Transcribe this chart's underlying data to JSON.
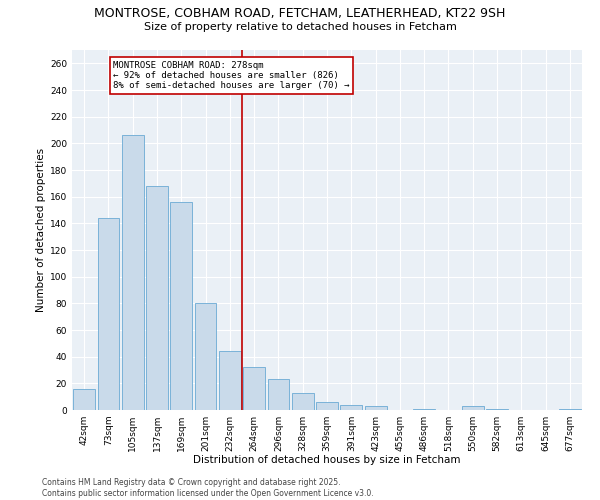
{
  "title": "MONTROSE, COBHAM ROAD, FETCHAM, LEATHERHEAD, KT22 9SH",
  "subtitle": "Size of property relative to detached houses in Fetcham",
  "xlabel": "Distribution of detached houses by size in Fetcham",
  "ylabel": "Number of detached properties",
  "categories": [
    "42sqm",
    "73sqm",
    "105sqm",
    "137sqm",
    "169sqm",
    "201sqm",
    "232sqm",
    "264sqm",
    "296sqm",
    "328sqm",
    "359sqm",
    "391sqm",
    "423sqm",
    "455sqm",
    "486sqm",
    "518sqm",
    "550sqm",
    "582sqm",
    "613sqm",
    "645sqm",
    "677sqm"
  ],
  "values": [
    16,
    144,
    206,
    168,
    156,
    80,
    44,
    32,
    23,
    13,
    6,
    4,
    3,
    0,
    1,
    0,
    3,
    1,
    0,
    0,
    1
  ],
  "bar_color": "#c9daea",
  "bar_edge_color": "#6aaad4",
  "property_bin_index": 7,
  "annotation_title": "MONTROSE COBHAM ROAD: 278sqm",
  "annotation_line1": "← 92% of detached houses are smaller (826)",
  "annotation_line2": "8% of semi-detached houses are larger (70) →",
  "vline_color": "#c00000",
  "annotation_box_color": "#c00000",
  "ylim": [
    0,
    270
  ],
  "yticks": [
    0,
    20,
    40,
    60,
    80,
    100,
    120,
    140,
    160,
    180,
    200,
    220,
    240,
    260
  ],
  "background_color": "#eaf0f6",
  "footer_line1": "Contains HM Land Registry data © Crown copyright and database right 2025.",
  "footer_line2": "Contains public sector information licensed under the Open Government Licence v3.0.",
  "title_fontsize": 9,
  "subtitle_fontsize": 8,
  "axis_label_fontsize": 7.5,
  "tick_fontsize": 6.5,
  "annotation_fontsize": 6.5,
  "footer_fontsize": 5.5
}
